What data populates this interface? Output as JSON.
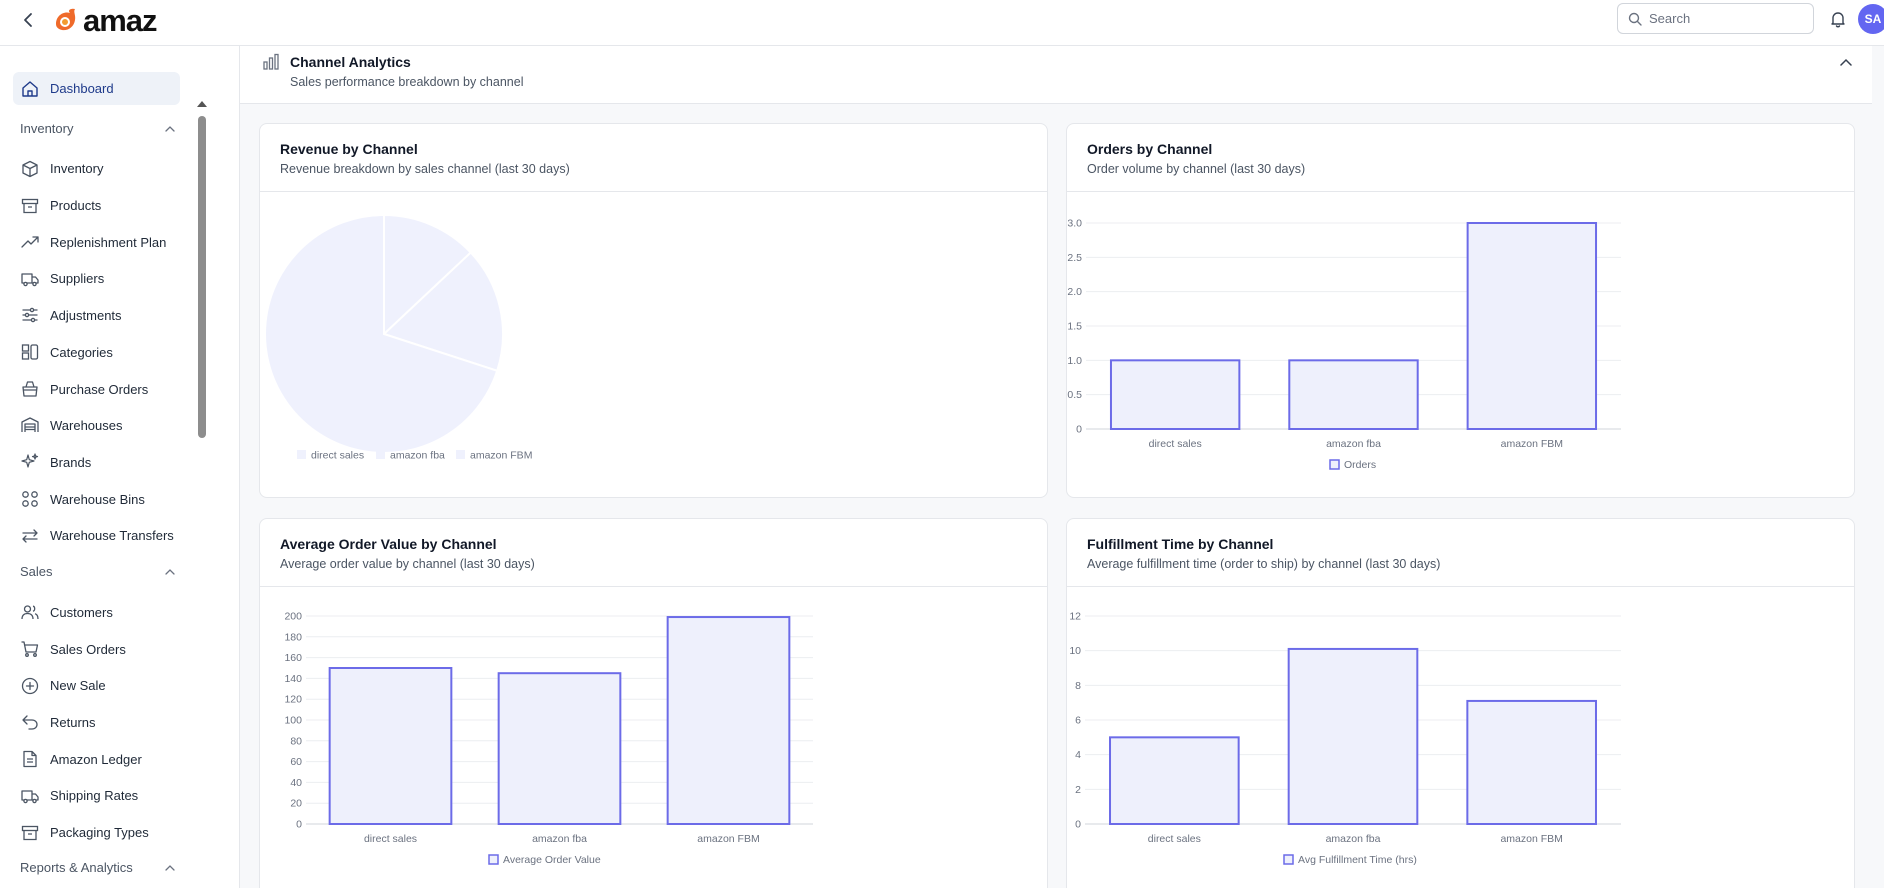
{
  "topbar": {
    "logo_text": "amaz",
    "search_placeholder": "Search",
    "avatar_initials": "SA"
  },
  "sidebar": {
    "top_items": [
      {
        "label": "Dashboard",
        "icon": "home-icon",
        "active": true
      }
    ],
    "sections": [
      {
        "label": "Inventory",
        "items": [
          {
            "label": "Inventory",
            "icon": "box-icon"
          },
          {
            "label": "Products",
            "icon": "archive-icon"
          },
          {
            "label": "Replenishment Plan",
            "icon": "trending-up-icon"
          },
          {
            "label": "Suppliers",
            "icon": "truck-icon"
          },
          {
            "label": "Adjustments",
            "icon": "sliders-icon"
          },
          {
            "label": "Categories",
            "icon": "shapes-icon"
          },
          {
            "label": "Purchase Orders",
            "icon": "shopping-bag-icon"
          },
          {
            "label": "Warehouses",
            "icon": "warehouse-icon"
          },
          {
            "label": "Brands",
            "icon": "sparkles-icon"
          },
          {
            "label": "Warehouse Bins",
            "icon": "grid-icon"
          },
          {
            "label": "Warehouse Transfers",
            "icon": "transfer-arrows-icon"
          }
        ]
      },
      {
        "label": "Sales",
        "items": [
          {
            "label": "Customers",
            "icon": "users-icon"
          },
          {
            "label": "Sales Orders",
            "icon": "cart-icon"
          },
          {
            "label": "New Sale",
            "icon": "plus-circle-icon"
          },
          {
            "label": "Returns",
            "icon": "undo-icon"
          },
          {
            "label": "Amazon Ledger",
            "icon": "file-text-icon"
          },
          {
            "label": "Shipping Rates",
            "icon": "truck-icon"
          },
          {
            "label": "Packaging Types",
            "icon": "archive-icon"
          }
        ]
      },
      {
        "label": "Reports & Analytics",
        "items": []
      }
    ]
  },
  "channel_analytics": {
    "title": "Channel Analytics",
    "subtitle": "Sales performance breakdown by channel"
  },
  "cards": [
    {
      "title": "Revenue by Channel",
      "subtitle": "Revenue breakdown by sales channel (last 30 days)"
    },
    {
      "title": "Orders by Channel",
      "subtitle": "Order volume by channel (last 30 days)"
    },
    {
      "title": "Average Order Value by Channel",
      "subtitle": "Average order value by channel (last 30 days)"
    },
    {
      "title": "Fulfillment Time by Channel",
      "subtitle": "Average fulfillment time (order to ship) by channel (last 30 days)"
    }
  ],
  "colors": {
    "bar_fill": "#eef0fc",
    "bar_stroke": "#6c6be8",
    "pie_fill": "#eff1fd",
    "grid": "#eceef1",
    "axis_text": "#6b7280"
  },
  "chart_data": [
    {
      "type": "pie",
      "title": "Revenue by Channel",
      "categories": [
        "direct sales",
        "amazon fba",
        "amazon FBM"
      ],
      "values": [
        13,
        17,
        70
      ],
      "legend": "bottom"
    },
    {
      "type": "bar",
      "title": "Orders by Channel",
      "categories": [
        "direct sales",
        "amazon fba",
        "amazon FBM"
      ],
      "series": [
        {
          "name": "Orders",
          "values": [
            1,
            1,
            3
          ]
        }
      ],
      "ylim": [
        0,
        3
      ],
      "yticks": [
        "0",
        "0.5",
        "1.0",
        "1.5",
        "2.0",
        "2.5",
        "3.0"
      ],
      "grid": true,
      "legend": "bottom"
    },
    {
      "type": "bar",
      "title": "Average Order Value by Channel",
      "categories": [
        "direct sales",
        "amazon fba",
        "amazon FBM"
      ],
      "series": [
        {
          "name": "Average Order Value",
          "values": [
            150,
            145,
            199
          ]
        }
      ],
      "ylim": [
        0,
        200
      ],
      "yticks": [
        "0",
        "20",
        "40",
        "60",
        "80",
        "100",
        "120",
        "140",
        "160",
        "180",
        "200"
      ],
      "grid": true,
      "legend": "bottom"
    },
    {
      "type": "bar",
      "title": "Fulfillment Time by Channel",
      "categories": [
        "direct sales",
        "amazon fba",
        "amazon FBM"
      ],
      "series": [
        {
          "name": "Avg Fulfillment Time (hrs)",
          "values": [
            5,
            10.1,
            7.1
          ]
        }
      ],
      "ylim": [
        0,
        12
      ],
      "yticks": [
        "0",
        "2",
        "4",
        "6",
        "8",
        "10",
        "12"
      ],
      "grid": true,
      "legend": "bottom"
    }
  ]
}
